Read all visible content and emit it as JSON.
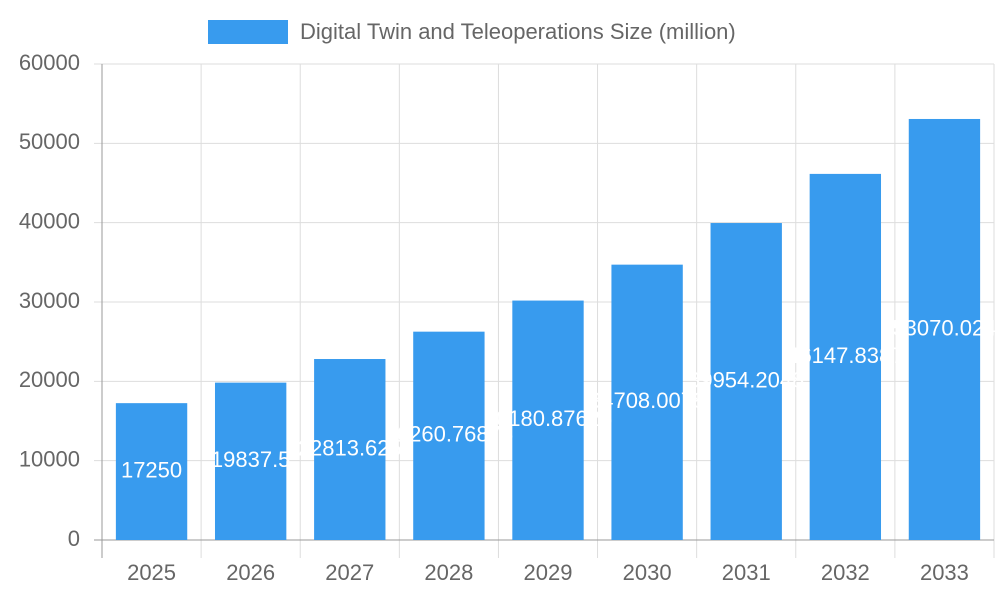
{
  "chart_data": {
    "type": "bar",
    "categories": [
      "2025",
      "2026",
      "2027",
      "2028",
      "2029",
      "2030",
      "2031",
      "2032",
      "2033"
    ],
    "series": [
      {
        "name": "Digital Twin and Teleoperations Size (million)",
        "color": "#389bee",
        "values": [
          17250,
          19837.5,
          22813.625,
          26260.76875,
          30180.87625,
          34708.0078,
          39954.2048,
          46147.8387,
          53070.024
        ]
      }
    ],
    "ylim": [
      0,
      60000
    ],
    "yticks": [
      0,
      10000,
      20000,
      30000,
      40000,
      50000,
      60000
    ],
    "grid": true,
    "legend": "top"
  }
}
